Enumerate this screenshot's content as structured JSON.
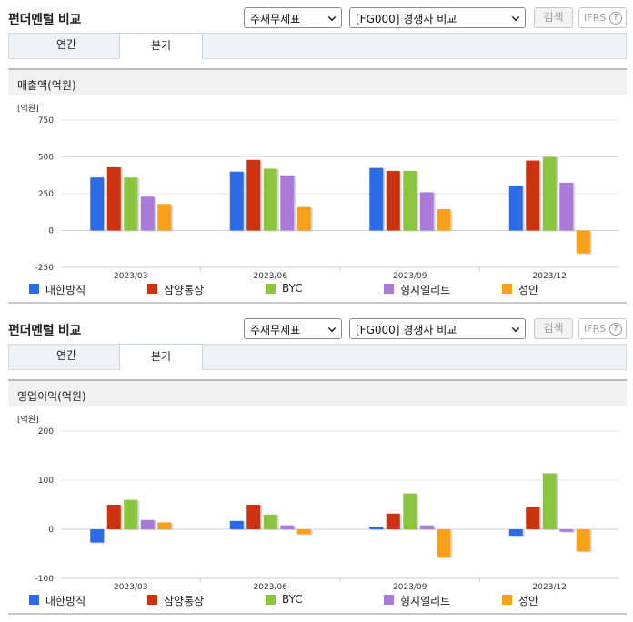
{
  "panels": [
    {
      "title": "펀더멘털 비교",
      "select_topic": "주재무제표",
      "select_compare": "[FG000] 경쟁사 비교",
      "search_label": "검색",
      "ifrs_label": "IFRS",
      "ifrs_help": "?",
      "tabs": [
        "연간",
        "분기"
      ],
      "active_tab": "분기",
      "section_title": "매출액(억원)",
      "unit_label": "[억원]"
    },
    {
      "title": "펀더멘털 비교",
      "select_topic": "주재무제표",
      "select_compare": "[FG000] 경쟁사 비교",
      "search_label": "검색",
      "ifrs_label": "IFRS",
      "ifrs_help": "?",
      "tabs": [
        "연간",
        "분기"
      ],
      "active_tab": "분기",
      "section_title": "영업이익(억원)",
      "unit_label": "[억원]"
    }
  ],
  "chart_data": [
    {
      "type": "bar",
      "title": "매출액(억원)",
      "ylabel": "[억원]",
      "categories": [
        "2023/03",
        "2023/06",
        "2023/09",
        "2023/12"
      ],
      "ylim": [
        -250,
        750
      ],
      "yticks": [
        -250,
        0,
        250,
        500,
        750
      ],
      "grid": true,
      "legend_position": "bottom",
      "series": [
        {
          "name": "대한방직",
          "color": "#2b6be6",
          "values": [
            360,
            400,
            425,
            305
          ]
        },
        {
          "name": "삼양통상",
          "color": "#cc3311",
          "values": [
            430,
            480,
            405,
            475
          ]
        },
        {
          "name": "BYC",
          "color": "#8bc53f",
          "values": [
            360,
            420,
            405,
            500
          ]
        },
        {
          "name": "형지엘리트",
          "color": "#a97ad8",
          "values": [
            230,
            375,
            260,
            325
          ]
        },
        {
          "name": "성안",
          "color": "#f7a11a",
          "values": [
            180,
            160,
            145,
            -155
          ]
        }
      ]
    },
    {
      "type": "bar",
      "title": "영업이익(억원)",
      "ylabel": "[억원]",
      "categories": [
        "2023/03",
        "2023/06",
        "2023/09",
        "2023/12"
      ],
      "ylim": [
        -100,
        200
      ],
      "yticks": [
        -100,
        0,
        100,
        200
      ],
      "grid": true,
      "legend_position": "bottom",
      "series": [
        {
          "name": "대한방직",
          "color": "#2b6be6",
          "values": [
            -27,
            17,
            5,
            -13
          ]
        },
        {
          "name": "삼양통상",
          "color": "#cc3311",
          "values": [
            50,
            50,
            32,
            46
          ]
        },
        {
          "name": "BYC",
          "color": "#8bc53f",
          "values": [
            60,
            30,
            73,
            114
          ]
        },
        {
          "name": "형지엘리트",
          "color": "#a97ad8",
          "values": [
            19,
            8,
            8,
            -5
          ]
        },
        {
          "name": "성안",
          "color": "#f7a11a",
          "values": [
            14,
            -10,
            -57,
            -45
          ]
        }
      ]
    }
  ]
}
